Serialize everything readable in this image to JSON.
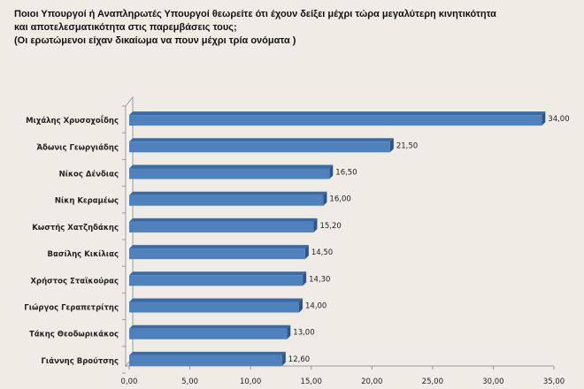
{
  "chart_data": {
    "type": "bar",
    "orientation": "horizontal",
    "title_lines": [
      "Ποιοι Υπουργοί ή Αναπληρωτές Υπουργοί θεωρείτε ότι έχουν δείξει μέχρι τώρα μεγαλύτερη κινητικότητα",
      "και αποτελεσματικότητα στις παρεμβάσεις τους;",
      "(Οι ερωτώμενοι είχαν δικαίωμα να πουν μέχρι τρία ονόματα )"
    ],
    "categories": [
      "Μιχάλης Χρυσοχοΐδης",
      "Άδωνις Γεωργιάδης",
      "Νίκος Δένδιας",
      "Νίκη Κεραμέως",
      "Κωστής Χατζηδάκης",
      "Βασίλης Κικίλιας",
      "Χρήστος Σταϊκούρας",
      "Γιώργος Γεραπετρίτης",
      "Τάκης Θεοδωρικάκος",
      "Γιάννης Βρούτσης"
    ],
    "values": [
      34.0,
      21.5,
      16.5,
      16.0,
      15.2,
      14.5,
      14.3,
      14.0,
      13.0,
      12.6
    ],
    "value_labels": [
      "34,00",
      "21,50",
      "16,50",
      "16,00",
      "15,20",
      "14,50",
      "14,30",
      "14,00",
      "13,00",
      "12,60"
    ],
    "xlim": [
      0,
      35
    ],
    "x_ticks": [
      "0,00",
      "5,00",
      "10,00",
      "15,00",
      "20,00",
      "25,00",
      "30,00",
      "35,00"
    ],
    "bar_color": "#4f81bd",
    "grid": false,
    "legend": "none"
  }
}
